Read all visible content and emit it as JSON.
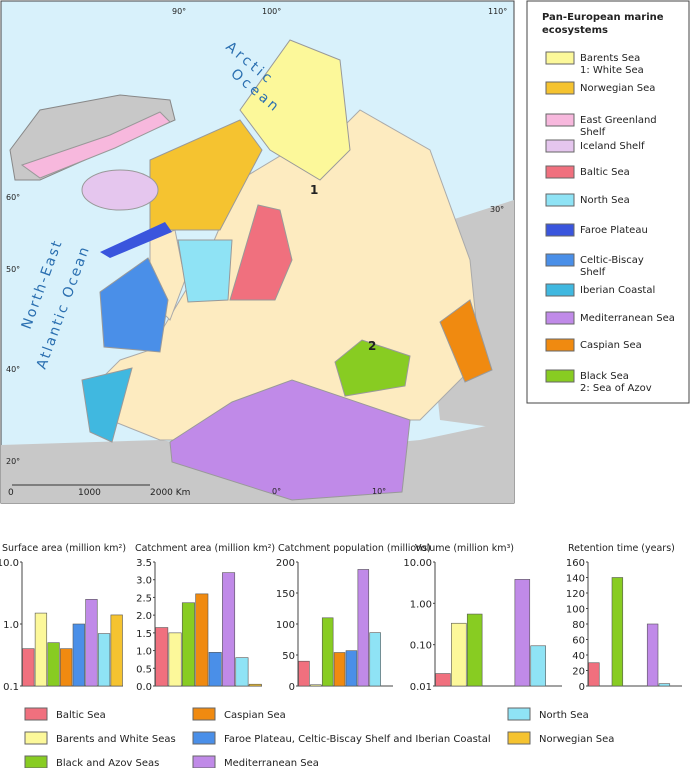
{
  "map": {
    "legend_title": [
      "Pan-European marine",
      "ecosystems"
    ],
    "legend": [
      {
        "lines": [
          "Barents Sea",
          "1: White Sea"
        ],
        "color": "#fcf89a"
      },
      {
        "lines": [
          "Norwegian Sea"
        ],
        "color": "#f5c330"
      },
      {
        "lines": [
          "East Greenland",
          "Shelf"
        ],
        "color": "#f7b8dd"
      },
      {
        "lines": [
          "Iceland Shelf"
        ],
        "color": "#e5c6ee"
      },
      {
        "lines": [
          "Baltic Sea"
        ],
        "color": "#f0707e"
      },
      {
        "lines": [
          "North Sea"
        ],
        "color": "#8fe3f5"
      },
      {
        "lines": [
          "Faroe Plateau"
        ],
        "color": "#3a55dd"
      },
      {
        "lines": [
          "Celtic-Biscay",
          "Shelf"
        ],
        "color": "#4a8fe8"
      },
      {
        "lines": [
          "Iberian Coastal"
        ],
        "color": "#40b8e0"
      },
      {
        "lines": [
          "Mediterranean Sea"
        ],
        "color": "#c08ae8"
      },
      {
        "lines": [
          "Caspian Sea"
        ],
        "color": "#f08a10"
      },
      {
        "lines": [
          "Black Sea",
          "2: Sea of Azov"
        ],
        "color": "#88cc22"
      }
    ],
    "ocean_labels": [
      "Arctic",
      "Ocean",
      "North-East",
      "Atlantic Ocean"
    ],
    "markers": [
      "1",
      "2"
    ],
    "scale": [
      "0",
      "1000",
      "2000 Km"
    ],
    "graticule": [
      "90°",
      "100°",
      "110°",
      "60°",
      "50°",
      "40°",
      "30°",
      "20°",
      "10°",
      "0°"
    ]
  },
  "bar_legend": {
    "names": [
      "Baltic Sea",
      "Barents and White Seas",
      "Black and Azov Seas",
      "Caspian Sea",
      "Faroe Plateau, Celtic-Biscay Shelf and Iberian Coastal",
      "Mediterranean Sea",
      "North Sea",
      "Norwegian Sea"
    ],
    "colors": [
      "#f0707e",
      "#fcf89a",
      "#88cc22",
      "#f08a10",
      "#4a8fe8",
      "#c08ae8",
      "#8fe3f5",
      "#f5c330"
    ]
  },
  "chart_data": [
    {
      "type": "bar",
      "title": "Surface area (million km²)",
      "log": true,
      "ylim": [
        0.1,
        10
      ],
      "yticks": [
        {
          "value": 0.1,
          "label": "0.1"
        },
        {
          "value": 1,
          "label": "1.0"
        },
        {
          "value": 10,
          "label": "10.0"
        }
      ],
      "values": [
        0.4,
        1.5,
        0.5,
        0.4,
        1.0,
        2.5,
        0.7,
        1.4
      ]
    },
    {
      "type": "bar",
      "title": "Catchment area (million km²)",
      "log": false,
      "ylim": [
        0,
        3.5
      ],
      "yticks": [
        {
          "value": 0,
          "label": "0.0"
        },
        0.5,
        {
          "value": 1,
          "label": "1.0"
        },
        1.5,
        {
          "value": 2,
          "label": "2.0"
        },
        2.5,
        {
          "value": 3,
          "label": "3.0"
        },
        3.5
      ],
      "values": [
        1.65,
        1.5,
        2.35,
        2.6,
        0.95,
        3.2,
        0.8,
        0.05
      ]
    },
    {
      "type": "bar",
      "title": "Catchment population (millions)",
      "log": false,
      "ylim": [
        0,
        200
      ],
      "yticks": [
        0,
        50,
        100,
        150,
        200
      ],
      "values": [
        40,
        2,
        110,
        54,
        57,
        188,
        86,
        null
      ]
    },
    {
      "type": "bar",
      "title": "Volume (million km³)",
      "log": true,
      "ylim": [
        0.01,
        10
      ],
      "yticks": [
        0.01,
        {
          "value": 0.1,
          "label": "0.10"
        },
        {
          "value": 1,
          "label": "1.00"
        },
        {
          "value": 10,
          "label": "10.00"
        }
      ],
      "values": [
        0.02,
        0.33,
        0.55,
        null,
        null,
        3.8,
        0.094,
        null
      ]
    },
    {
      "type": "bar",
      "title": "Retention time (years)",
      "log": false,
      "ylim": [
        0,
        160
      ],
      "yticks": [
        0,
        20,
        40,
        60,
        80,
        100,
        120,
        140,
        160
      ],
      "values": [
        30,
        null,
        140,
        null,
        null,
        80,
        3,
        null
      ]
    }
  ]
}
